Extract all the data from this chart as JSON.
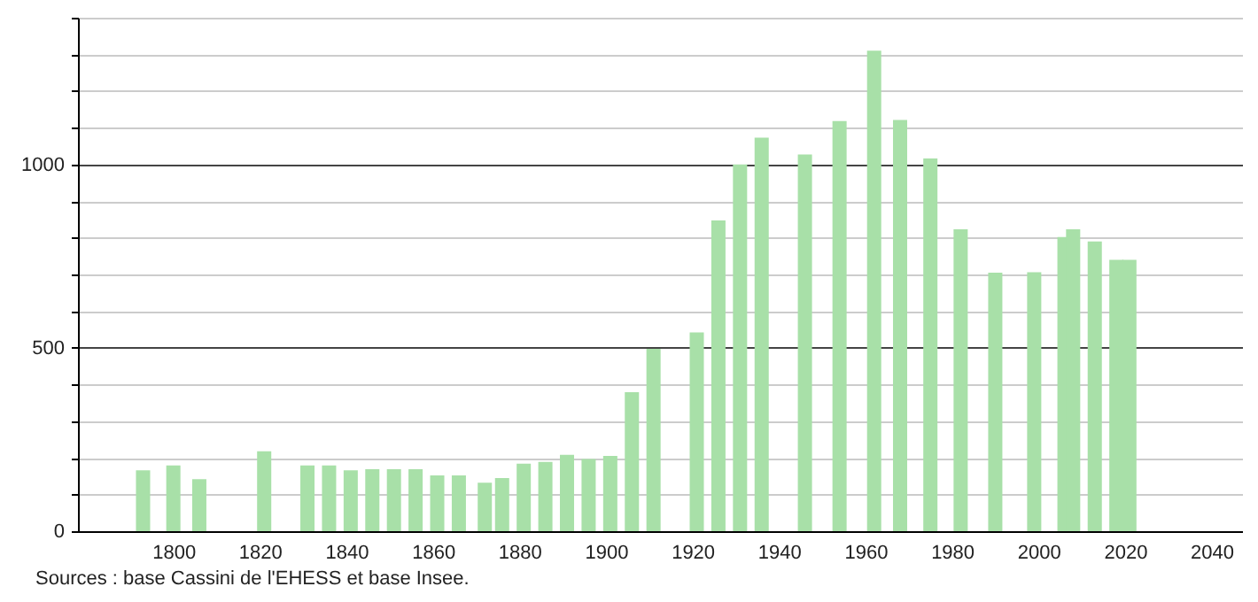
{
  "chart_data": {
    "type": "bar",
    "color": "#a8e0a8",
    "x": [
      1793,
      1800,
      1806,
      1821,
      1831,
      1836,
      1841,
      1846,
      1851,
      1856,
      1861,
      1866,
      1872,
      1876,
      1881,
      1886,
      1891,
      1896,
      1901,
      1906,
      1911,
      1921,
      1926,
      1931,
      1936,
      1946,
      1954,
      1962,
      1968,
      1975,
      1982,
      1990,
      1999,
      2006,
      2008,
      2013,
      2018,
      2021
    ],
    "values": [
      166,
      179,
      142,
      218,
      179,
      179,
      166,
      169,
      169,
      169,
      152,
      152,
      132,
      145,
      184,
      189,
      208,
      197,
      205,
      379,
      497,
      542,
      847,
      1000,
      1073,
      1027,
      1118,
      1310,
      1121,
      1016,
      823,
      705,
      706,
      802,
      823,
      790,
      740,
      740
    ],
    "xlim": [
      1780,
      2045
    ],
    "xticks": [
      1800,
      1820,
      1840,
      1860,
      1880,
      1900,
      1920,
      1940,
      1960,
      1980,
      2000,
      2020,
      2040
    ],
    "ylim": [
      0,
      1400
    ],
    "yticks": [
      0,
      {
        "value": 100,
        "label": null
      },
      {
        "value": 200,
        "label": null
      },
      {
        "value": 300,
        "label": null
      },
      {
        "value": 400,
        "label": null
      },
      500,
      {
        "value": 600,
        "label": null
      },
      {
        "value": 700,
        "label": null
      },
      {
        "value": 800,
        "label": null
      },
      {
        "value": 900,
        "label": null
      },
      1000,
      {
        "value": 1100,
        "label": null
      },
      {
        "value": 1200,
        "label": null
      },
      {
        "value": 1300,
        "label": null
      },
      {
        "value": 1400,
        "label": null
      }
    ],
    "grid": "y",
    "annotations": [
      "Sources : base Cassini de l'EHESS et base Insee."
    ]
  }
}
